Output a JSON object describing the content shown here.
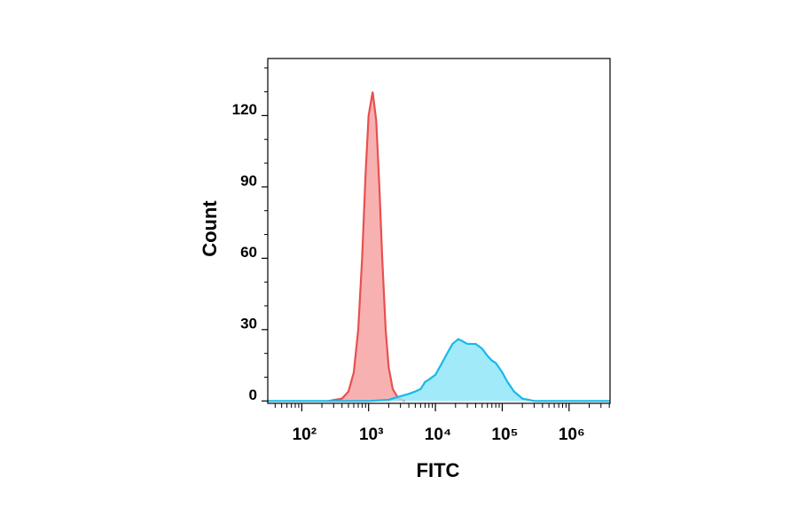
{
  "chart_data": {
    "type": "histogram-overlay",
    "x_label": "FITC",
    "y_label": "Count",
    "xscale": "log",
    "xlim": [
      31,
      4100000
    ],
    "xticks": [
      {
        "value": 100,
        "label": "10²"
      },
      {
        "value": 1000,
        "label": "10³"
      },
      {
        "value": 10000,
        "label": "10⁴"
      },
      {
        "value": 100000,
        "label": "10⁵"
      },
      {
        "value": 1000000,
        "label": "10⁶"
      }
    ],
    "ylim": [
      -1,
      144
    ],
    "yticks": [
      0,
      30,
      60,
      90,
      120
    ],
    "series": [
      {
        "color": "#e8504f",
        "fill": "#f7a3a3",
        "x": [
          250,
          400,
          500,
          600,
          700,
          800,
          900,
          1000,
          1150,
          1300,
          1450,
          1600,
          1800,
          2000,
          2300,
          2800,
          3500
        ],
        "values": [
          0,
          1,
          4,
          12,
          30,
          60,
          95,
          120,
          130,
          118,
          90,
          60,
          30,
          14,
          5,
          1,
          0
        ]
      },
      {
        "color": "#1ab8e8",
        "fill": "#8fe6f8",
        "x": [
          31,
          1000,
          2000,
          3000,
          4000,
          5000,
          6000,
          7000,
          8000,
          10000,
          12000,
          15000,
          18000,
          22000,
          26000,
          30000,
          40000,
          50000,
          60000,
          70000,
          80000,
          100000,
          120000,
          150000,
          200000,
          300000,
          4100000
        ],
        "values": [
          0,
          0,
          0.5,
          2,
          3,
          4,
          5,
          8,
          9,
          11,
          15,
          20,
          24,
          26,
          25,
          24,
          24,
          22,
          19,
          17,
          16,
          12,
          8,
          4,
          1,
          0,
          0
        ]
      }
    ]
  }
}
